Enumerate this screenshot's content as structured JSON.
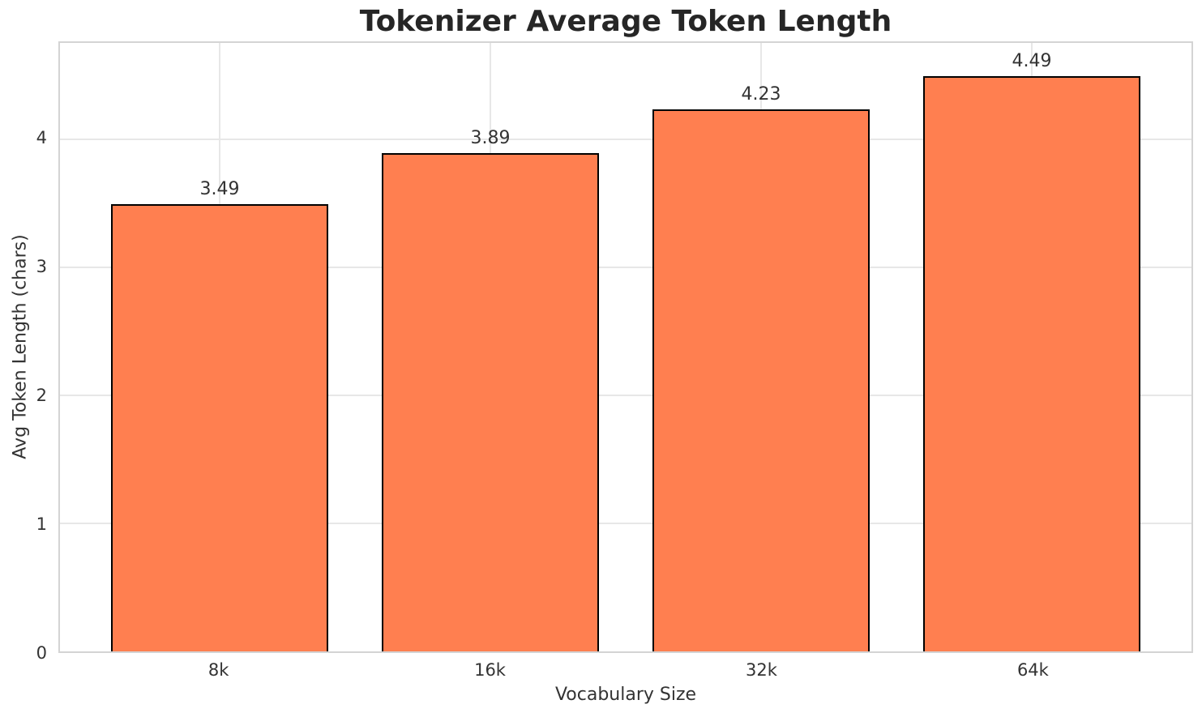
{
  "chart_data": {
    "type": "bar",
    "title": "Tokenizer Average Token Length",
    "xlabel": "Vocabulary Size",
    "ylabel": "Avg Token Length (chars)",
    "categories": [
      "8k",
      "16k",
      "32k",
      "64k"
    ],
    "values": [
      3.49,
      3.89,
      4.23,
      4.49
    ],
    "value_labels": [
      "3.49",
      "3.89",
      "4.23",
      "4.49"
    ],
    "yticks": [
      0,
      1,
      2,
      3,
      4
    ],
    "ylim": [
      0,
      4.75
    ],
    "xlim": [
      -0.59,
      3.59
    ],
    "bar_width_units": 0.8,
    "grid": true,
    "legend": "none",
    "colors": {
      "bar_fill": "#FF7F50",
      "bar_edge": "#000000",
      "grid_color": "#e7e7e7",
      "spine_color": "#d4d4d4",
      "text_color": "#333333",
      "title_color": "#262626",
      "background": "#ffffff"
    }
  }
}
